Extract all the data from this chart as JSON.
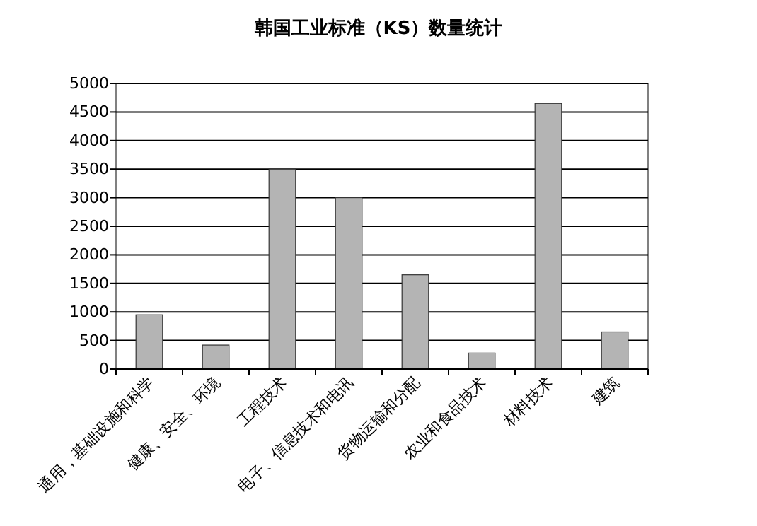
{
  "chart_data": {
    "type": "bar",
    "title": "韩国工业标准（KS）数量统计",
    "categories": [
      "通用，基础设施和科学",
      "健康、安全、环境",
      "工程技术",
      "电子、信息技术和电讯",
      "货物运输和分配",
      "农业和食品技术",
      "材料技术",
      "建筑"
    ],
    "values": [
      950,
      420,
      3500,
      3000,
      1650,
      280,
      4650,
      650
    ],
    "color": "#b4b4b4",
    "ylim": [
      0,
      5000
    ],
    "yticks": [
      0,
      500,
      1000,
      1500,
      2000,
      2500,
      3000,
      3500,
      4000,
      4500,
      5000
    ],
    "grid": "y"
  }
}
